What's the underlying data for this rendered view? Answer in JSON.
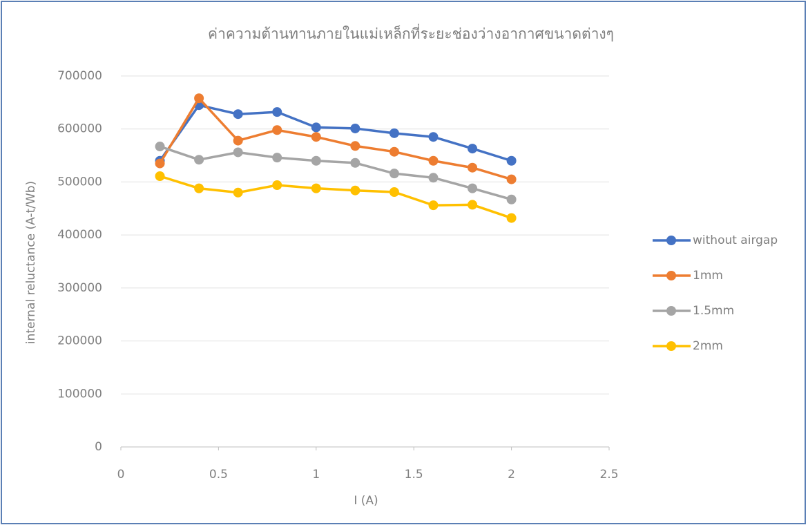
{
  "chart_data": {
    "type": "line",
    "title": "ค่าความต้านทานภายในแม่เหล็กที่ระยะช่องว่างอากาศขนาดต่างๆ",
    "xlabel": "I (A)",
    "ylabel": "internal reluctance (A-t/Wb)",
    "x": [
      0.2,
      0.4,
      0.6,
      0.8,
      1.0,
      1.2,
      1.4,
      1.6,
      1.8,
      2.0
    ],
    "series": [
      {
        "name": "without airgap",
        "color": "#4472c4",
        "values": [
          540000,
          645000,
          628000,
          632000,
          603000,
          601000,
          592000,
          585000,
          563000,
          540000
        ]
      },
      {
        "name": "1mm",
        "color": "#ed7d31",
        "values": [
          535000,
          658000,
          578000,
          598000,
          585000,
          568000,
          557000,
          540000,
          527000,
          505000
        ]
      },
      {
        "name": "1.5mm",
        "color": "#a5a5a5",
        "values": [
          567000,
          542000,
          556000,
          546000,
          540000,
          536000,
          516000,
          508000,
          488000,
          467000
        ]
      },
      {
        "name": "2mm",
        "color": "#ffc000",
        "values": [
          511000,
          488000,
          480000,
          494000,
          488000,
          484000,
          481000,
          456000,
          457000,
          432000
        ]
      }
    ],
    "xlim": [
      0,
      2.5
    ],
    "xticks": [
      0,
      0.5,
      1,
      1.5,
      2,
      2.5
    ],
    "ylim": [
      0,
      700000
    ],
    "yticks": [
      0,
      100000,
      200000,
      300000,
      400000,
      500000,
      600000,
      700000
    ],
    "grid": true,
    "legend": "right"
  }
}
